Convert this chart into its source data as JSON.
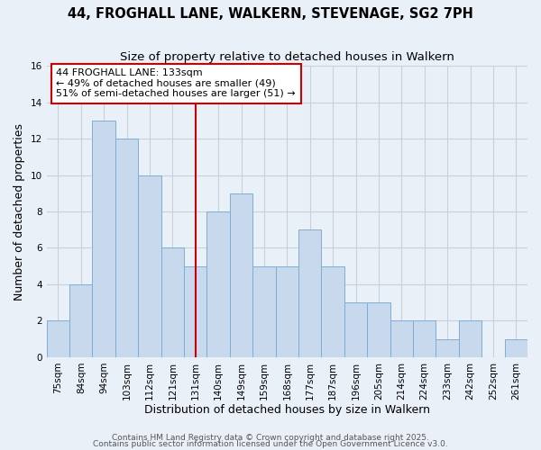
{
  "title": "44, FROGHALL LANE, WALKERN, STEVENAGE, SG2 7PH",
  "subtitle": "Size of property relative to detached houses in Walkern",
  "xlabel": "Distribution of detached houses by size in Walkern",
  "ylabel": "Number of detached properties",
  "categories": [
    "75sqm",
    "84sqm",
    "94sqm",
    "103sqm",
    "112sqm",
    "121sqm",
    "131sqm",
    "140sqm",
    "149sqm",
    "159sqm",
    "168sqm",
    "177sqm",
    "187sqm",
    "196sqm",
    "205sqm",
    "214sqm",
    "224sqm",
    "233sqm",
    "242sqm",
    "252sqm",
    "261sqm"
  ],
  "values": [
    2,
    4,
    13,
    12,
    10,
    6,
    5,
    8,
    9,
    5,
    5,
    7,
    5,
    3,
    3,
    2,
    2,
    1,
    2,
    0,
    1
  ],
  "bar_color": "#c8d9ee",
  "bar_edge_color": "#7bafd4",
  "vline_x_index": 6,
  "vline_color": "#cc0000",
  "ylim": [
    0,
    16
  ],
  "yticks": [
    0,
    2,
    4,
    6,
    8,
    10,
    12,
    14,
    16
  ],
  "annotation_title": "44 FROGHALL LANE: 133sqm",
  "annotation_line1": "← 49% of detached houses are smaller (49)",
  "annotation_line2": "51% of semi-detached houses are larger (51) →",
  "annotation_box_color": "#ffffff",
  "annotation_box_edge": "#cc0000",
  "footer1": "Contains HM Land Registry data © Crown copyright and database right 2025.",
  "footer2": "Contains public sector information licensed under the Open Government Licence v3.0.",
  "background_color": "#eaf0f8",
  "grid_color": "#c8d0dc",
  "title_fontsize": 10.5,
  "subtitle_fontsize": 9.5,
  "axis_label_fontsize": 9,
  "tick_fontsize": 7.5,
  "annotation_fontsize": 8,
  "footer_fontsize": 6.5
}
